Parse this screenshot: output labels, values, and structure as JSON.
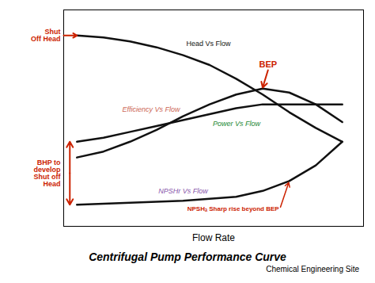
{
  "chart_data": {
    "type": "line",
    "title": "Centrifugal Pump Performance Curve",
    "subtitle": "Chemical Engineering Site",
    "xlabel": "Flow Rate",
    "color": "#111111",
    "x": [
      0,
      0.1,
      0.2,
      0.3,
      0.4,
      0.5,
      0.6,
      0.7,
      0.8,
      0.9,
      1.0
    ],
    "series": [
      {
        "name": "Head Vs Flow",
        "color": "#111111",
        "values": [
          0.92,
          0.91,
          0.89,
          0.86,
          0.82,
          0.77,
          0.7,
          0.62,
          0.53,
          0.45,
          0.38
        ]
      },
      {
        "name": "Efficiency Vs Flow",
        "color": "#cc6655",
        "values": [
          0.3,
          0.33,
          0.38,
          0.44,
          0.51,
          0.57,
          0.62,
          0.65,
          0.63,
          0.57,
          0.48
        ]
      },
      {
        "name": "Power Vs Flow",
        "color": "#228833",
        "values": [
          0.38,
          0.4,
          0.43,
          0.46,
          0.49,
          0.52,
          0.55,
          0.57,
          0.57,
          0.57,
          0.57
        ]
      },
      {
        "name": "NPSHr Vs Flow",
        "color": "#8855aa",
        "values": [
          0.06,
          0.065,
          0.07,
          0.075,
          0.08,
          0.09,
          0.1,
          0.13,
          0.18,
          0.26,
          0.38
        ]
      }
    ],
    "annotations": [
      {
        "text": "BEP",
        "color": "#cc2200",
        "x": 0.7,
        "y": 0.65
      },
      {
        "text": "Shut\nOff Head",
        "color": "#cc2200"
      },
      {
        "text": "BHP to\ndevelop\nShut off\nHead",
        "color": "#cc2200"
      },
      {
        "text": "NPSHₐ Sharp rise beyond BEP",
        "color": "#cc2200"
      }
    ],
    "xlim": [
      -0.05,
      1.08
    ],
    "ylim": [
      -0.05,
      1.05
    ],
    "xticks": [],
    "yticks": [],
    "tick_labels": false,
    "grid": false
  }
}
